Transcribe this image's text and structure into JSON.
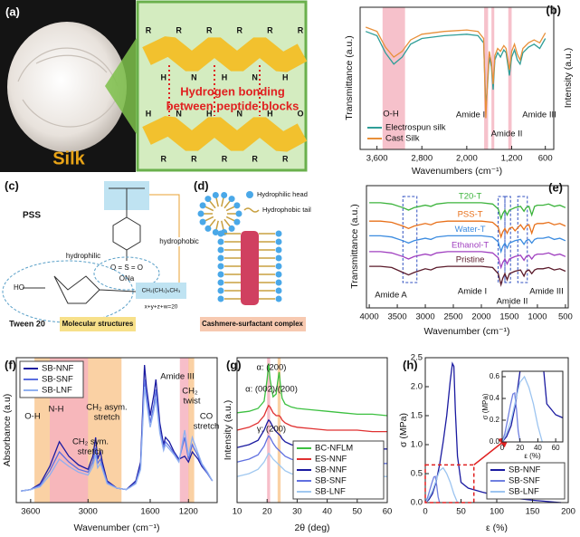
{
  "panels": {
    "a": {
      "label": "(a)",
      "photo_caption": "Silk",
      "bond_text": [
        "Hydrogen bonding",
        "between peptide blocks"
      ],
      "upper_chain_atoms": [
        "R",
        "H",
        "R",
        "N",
        "R",
        "H",
        "R",
        "N",
        "R",
        "H",
        "R"
      ],
      "lower_chain_atoms": [
        "H",
        "R",
        "N",
        "R",
        "H",
        "R",
        "N",
        "R",
        "H",
        "R",
        "O"
      ]
    },
    "c": {
      "label": "(c)",
      "pss": "PSS",
      "sulfonate": "O = S = O",
      "sodium": "ONa",
      "hydrophobic": "hydrophobic",
      "hydrophilic": "hydrophilic",
      "hydroxyl": "HO",
      "tween": "Tween 20",
      "tail": "CH₂(CH₂)₉CH₃",
      "sum": "x+y+z+w=20",
      "caption": "Molecular structures"
    },
    "d": {
      "label": "(d)",
      "head": "Hydrophilic head",
      "tail": "Hydrophobic tail",
      "caption": "Cashmere-surfactant complex"
    }
  },
  "chart_data": [
    {
      "type": "line",
      "panel_label": "(b)",
      "xlabel": "Wavenumbers (cm⁻¹)",
      "ylabel": "Transmittance (a.u.)",
      "y2label": "Intensity (a.u.)",
      "x": [
        3800,
        3600,
        3450,
        3300,
        3150,
        3000,
        2800,
        2400,
        2000,
        1800,
        1700,
        1660,
        1630,
        1600,
        1560,
        1530,
        1500,
        1450,
        1400,
        1340,
        1300,
        1240,
        1200,
        1150,
        1100,
        1050,
        1000,
        900,
        800,
        700,
        600
      ],
      "series": [
        {
          "name": "Electrospun silk",
          "color": "#2f9e98",
          "values": [
            8.3,
            8.0,
            6.8,
            6.0,
            6.5,
            7.4,
            7.8,
            8.0,
            8.1,
            8.0,
            7.5,
            3.0,
            4.5,
            6.5,
            5.8,
            4.2,
            6.3,
            6.8,
            6.5,
            7.0,
            6.8,
            5.2,
            6.5,
            7.0,
            6.3,
            6.0,
            6.8,
            7.2,
            7.4,
            7.1,
            7.8
          ]
        },
        {
          "name": "Cast Silk",
          "color": "#e8903a",
          "values": [
            8.6,
            8.3,
            7.2,
            6.5,
            6.9,
            7.7,
            8.1,
            8.3,
            8.4,
            8.3,
            7.8,
            2.2,
            4.8,
            6.9,
            6.1,
            4.6,
            6.6,
            7.1,
            6.9,
            7.3,
            7.1,
            5.6,
            6.9,
            7.4,
            6.7,
            6.3,
            7.1,
            7.5,
            7.7,
            7.5,
            8.2
          ]
        }
      ],
      "xlim": [
        3900,
        450
      ],
      "ylim": [
        0,
        10
      ],
      "xticks": [
        {
          "value": 3600,
          "label": "3,600"
        },
        {
          "value": 2800,
          "label": "2,800"
        },
        {
          "value": 2000,
          "label": "2,000"
        },
        {
          "value": 1200,
          "label": "1,200"
        },
        600
      ],
      "bands": [
        {
          "range": [
            3500,
            3100
          ],
          "color": "#f4b6c2"
        },
        {
          "range": [
            1690,
            1620
          ],
          "color": "#f4b6c2"
        },
        {
          "range": [
            1560,
            1510
          ],
          "color": "#f4b6c2"
        },
        {
          "range": [
            1260,
            1200
          ],
          "color": "#f4b6c2"
        }
      ],
      "annotations": [
        "O-H",
        "Amide I",
        "Amide II",
        "Amide III"
      ],
      "legend": "bottom-left"
    },
    {
      "type": "line",
      "panel_label": "(e)",
      "xlabel": "Wavenumber (cm⁻¹)",
      "ylabel": "Transmittance (a.u.)",
      "x": [
        4000,
        3800,
        3600,
        3400,
        3300,
        3200,
        3000,
        2900,
        2800,
        2600,
        2400,
        2200,
        2000,
        1800,
        1700,
        1650,
        1620,
        1580,
        1540,
        1500,
        1450,
        1400,
        1300,
        1240,
        1200,
        1150,
        1100,
        1050,
        1000,
        900,
        800,
        700,
        600,
        500
      ],
      "series": [
        {
          "name": "T20-T",
          "color": "#3cb33c",
          "values": [
            8.6,
            8.6,
            8.5,
            8.2,
            8.0,
            8.2,
            8.4,
            8.3,
            8.5,
            8.6,
            8.6,
            8.6,
            8.6,
            8.5,
            8.1,
            7.3,
            7.7,
            8.0,
            7.6,
            8.0,
            8.1,
            8.2,
            8.3,
            7.9,
            8.2,
            8.3,
            7.6,
            8.3,
            8.4,
            8.4,
            8.5,
            8.3,
            8.4,
            8.2
          ]
        },
        {
          "name": "PSS-T",
          "color": "#e8701a",
          "values": [
            7.1,
            7.1,
            7.0,
            6.7,
            6.5,
            6.7,
            6.9,
            6.8,
            7.0,
            7.1,
            7.1,
            7.1,
            7.1,
            7.0,
            6.6,
            5.8,
            6.2,
            6.5,
            6.1,
            6.5,
            6.6,
            6.3,
            6.8,
            6.4,
            6.7,
            6.8,
            6.1,
            6.8,
            6.9,
            6.9,
            7.0,
            6.8,
            6.9,
            6.7
          ]
        },
        {
          "name": "Water-T",
          "color": "#3c8ce0",
          "values": [
            5.9,
            5.9,
            5.8,
            5.5,
            5.3,
            5.5,
            5.7,
            5.6,
            5.8,
            5.9,
            5.9,
            5.9,
            5.9,
            5.8,
            5.4,
            4.6,
            5.0,
            5.3,
            4.9,
            5.3,
            5.4,
            5.5,
            5.6,
            5.2,
            5.5,
            5.6,
            5.3,
            5.6,
            5.7,
            5.7,
            5.8,
            5.6,
            5.7,
            5.5
          ]
        },
        {
          "name": "Ethanol-T",
          "color": "#a040c0",
          "values": [
            4.6,
            4.6,
            4.5,
            4.2,
            4.0,
            4.2,
            4.4,
            4.3,
            4.5,
            4.6,
            4.6,
            4.6,
            4.6,
            4.5,
            4.1,
            3.3,
            3.7,
            4.0,
            3.6,
            4.0,
            4.1,
            4.2,
            4.3,
            3.9,
            4.2,
            4.3,
            4.0,
            4.3,
            4.4,
            4.4,
            4.5,
            4.3,
            4.4,
            4.2
          ]
        },
        {
          "name": "Pristine",
          "color": "#5a1a2a",
          "values": [
            3.4,
            3.4,
            3.3,
            2.9,
            2.7,
            2.9,
            3.2,
            3.1,
            3.3,
            3.4,
            3.4,
            3.4,
            3.4,
            3.3,
            2.8,
            1.9,
            2.4,
            2.8,
            2.3,
            2.8,
            2.9,
            3.0,
            3.1,
            2.6,
            3.0,
            3.1,
            2.8,
            3.1,
            3.2,
            3.2,
            3.3,
            3.1,
            3.2,
            3.0
          ]
        }
      ],
      "xlim": [
        4050,
        450
      ],
      "ylim": [
        0,
        10
      ],
      "xticks": [
        4000,
        3500,
        3000,
        2500,
        2000,
        1500,
        1000,
        500
      ],
      "highlight_ranges": [
        [
          3400,
          3150
        ],
        [
          1700,
          1580
        ],
        [
          1580,
          1480
        ],
        [
          1350,
          1180
        ]
      ],
      "highlight_color": "#3050c0",
      "annotations": [
        "Amide A",
        "Amide I",
        "Amide II",
        "Amide III"
      ],
      "legend": "inline"
    },
    {
      "type": "line",
      "panel_label": "(f)",
      "xlabel": "Wavenumber (cm⁻¹)",
      "ylabel": "Absorbance (a.u)",
      "x": [
        3700,
        3600,
        3500,
        3400,
        3300,
        3200,
        3100,
        3000,
        2950,
        2920,
        2900,
        2870,
        2850,
        2800,
        2700,
        2600,
        1850,
        1800,
        1750,
        1700,
        1660,
        1640,
        1600,
        1560,
        1540,
        1500,
        1460,
        1440,
        1400,
        1350,
        1300,
        1240,
        1200,
        1160,
        1100,
        1060,
        1000,
        950
      ],
      "series": [
        {
          "name": "SB-NNF",
          "color": "#1a1aa0",
          "values": [
            0.8,
            0.9,
            1.3,
            2.5,
            4.2,
            3.2,
            2.6,
            2.3,
            3.2,
            4.5,
            3.0,
            3.5,
            2.8,
            1.5,
            1.0,
            0.9,
            0.9,
            1.2,
            1.5,
            2.8,
            9.5,
            8.0,
            6.0,
            7.5,
            8.5,
            5.5,
            4.0,
            4.5,
            4.2,
            3.5,
            3.0,
            3.2,
            2.8,
            3.5,
            3.0,
            2.5,
            2.0,
            1.5
          ]
        },
        {
          "name": "SB-SNF",
          "color": "#5a6ee0",
          "values": [
            0.8,
            0.9,
            1.2,
            2.2,
            3.5,
            2.8,
            2.3,
            2.1,
            2.8,
            3.8,
            2.7,
            3.0,
            2.5,
            1.4,
            1.0,
            0.9,
            0.9,
            1.1,
            1.4,
            2.5,
            8.5,
            7.5,
            5.5,
            6.8,
            7.8,
            5.0,
            3.8,
            4.2,
            3.9,
            3.4,
            2.9,
            4.5,
            3.0,
            4.0,
            3.2,
            2.6,
            2.0,
            1.5
          ]
        },
        {
          "name": "SB-LNF",
          "color": "#8fb0f0",
          "values": [
            0.8,
            0.9,
            1.1,
            1.9,
            3.0,
            2.5,
            2.1,
            1.9,
            2.5,
            3.3,
            2.4,
            2.7,
            2.3,
            1.3,
            1.0,
            0.9,
            0.9,
            1.1,
            1.3,
            2.3,
            8.0,
            7.0,
            5.2,
            6.4,
            7.2,
            4.8,
            3.6,
            4.0,
            3.7,
            3.3,
            2.8,
            5.0,
            3.2,
            4.5,
            3.4,
            2.7,
            2.1,
            1.5
          ]
        }
      ],
      "xlim": [
        3750,
        900
      ],
      "axis_break": [
        2600,
        1850
      ],
      "ylim": [
        0,
        10
      ],
      "xticks": [
        3600,
        3000,
        1600,
        1200
      ],
      "bands": [
        {
          "range": [
            3560,
            2650
          ],
          "color": "#f9c994"
        },
        {
          "range": [
            3400,
            3000
          ],
          "color": "#f6b3c0"
        },
        {
          "range": [
            1290,
            1190
          ],
          "color": "#f6b3c0"
        },
        {
          "range": [
            1200,
            1140
          ],
          "color": "#f9c994"
        }
      ],
      "annotations": [
        "O-H",
        "N-H",
        "CH₂ asym.",
        "stretch",
        "CH₂ sym.",
        "stretch",
        "Amide III",
        "CH₂",
        "twist",
        "CO",
        "stretch"
      ],
      "legend": "top-left"
    },
    {
      "type": "line",
      "panel_label": "(g)",
      "xlabel": "2θ (deg)",
      "ylabel": "Intensity (a.u.)",
      "x": [
        10,
        14,
        17,
        19,
        20,
        20.5,
        21,
        22,
        23,
        23.5,
        24,
        24.5,
        25,
        26,
        28,
        30,
        35,
        40,
        45,
        50,
        55,
        60
      ],
      "series": [
        {
          "name": "BC-NFLM",
          "color": "#3cc040",
          "values": [
            6.2,
            6.3,
            6.5,
            7.0,
            8.5,
            9.6,
            8.5,
            7.3,
            7.5,
            8.3,
            9.0,
            8.0,
            7.2,
            6.8,
            6.6,
            6.5,
            6.4,
            6.3,
            6.2,
            6.1,
            6.1,
            6.0
          ]
        },
        {
          "name": "ES-NNF",
          "color": "#e03030",
          "values": [
            5.0,
            5.2,
            5.5,
            6.0,
            6.5,
            6.7,
            6.6,
            6.2,
            6.0,
            6.0,
            6.0,
            5.9,
            5.7,
            5.5,
            5.3,
            5.2,
            5.1,
            5.0,
            5.0,
            5.0,
            4.9,
            4.9
          ]
        },
        {
          "name": "SB-NNF",
          "color": "#1a1aa0",
          "values": [
            3.8,
            4.0,
            4.3,
            5.0,
            5.5,
            5.7,
            5.6,
            5.2,
            4.9,
            4.8,
            4.7,
            4.6,
            4.4,
            4.2,
            4.0,
            3.9,
            3.9,
            3.8,
            3.8,
            3.8,
            3.7,
            3.7
          ]
        },
        {
          "name": "SB-SNF",
          "color": "#6070e0",
          "values": [
            2.8,
            3.0,
            3.3,
            3.9,
            4.4,
            4.6,
            4.5,
            4.1,
            3.8,
            3.7,
            3.6,
            3.5,
            3.4,
            3.2,
            3.0,
            2.9,
            2.9,
            2.8,
            2.8,
            2.8,
            2.7,
            2.7
          ]
        },
        {
          "name": "SB-LNF",
          "color": "#a0c8f0",
          "values": [
            1.8,
            2.0,
            2.3,
            2.8,
            3.2,
            3.4,
            3.3,
            3.0,
            2.8,
            2.7,
            2.6,
            2.5,
            2.4,
            2.2,
            2.0,
            1.9,
            1.9,
            1.8,
            1.8,
            1.8,
            1.8,
            1.8
          ]
        }
      ],
      "xlim": [
        10,
        60
      ],
      "ylim": [
        0,
        10
      ],
      "xticks": [
        10,
        20,
        30,
        40,
        50,
        60
      ],
      "bands": [
        {
          "range": [
            20,
            21
          ],
          "color": "#f6b3c0"
        },
        {
          "range": [
            23.5,
            24.5
          ],
          "color": "#f9c994"
        }
      ],
      "annotations": [
        "α: (200)",
        "α: (002)/(200)",
        "γ: (200)"
      ],
      "legend": "bottom-right"
    },
    {
      "type": "line",
      "panel_label": "(h)",
      "xlabel": "ε (%)",
      "ylabel": "σ (MPa)",
      "series": [
        {
          "name": "SB-NNF",
          "color": "#1a1aa0",
          "x": [
            0,
            5,
            10,
            15,
            20,
            25,
            30,
            35,
            38,
            40,
            42,
            45,
            50,
            60,
            80,
            100,
            120,
            150,
            180,
            190
          ],
          "values": [
            0,
            0.05,
            0.15,
            0.35,
            0.65,
            1.05,
            1.5,
            2.1,
            2.4,
            2.35,
            1.6,
            0.8,
            0.35,
            0.25,
            0.18,
            0.12,
            0.08,
            0.04,
            0.01,
            0
          ]
        },
        {
          "name": "SB-SNF",
          "color": "#7080e0",
          "x": [
            0,
            3,
            6,
            9,
            12,
            14,
            16,
            18,
            20
          ],
          "values": [
            0,
            0.08,
            0.2,
            0.33,
            0.44,
            0.45,
            0.3,
            0.1,
            0
          ]
        },
        {
          "name": "SB-LNF",
          "color": "#9cc4f0",
          "x": [
            0,
            5,
            10,
            15,
            20,
            25,
            30,
            35,
            40,
            45
          ],
          "values": [
            0,
            0.08,
            0.2,
            0.38,
            0.55,
            0.6,
            0.5,
            0.35,
            0.15,
            0
          ]
        }
      ],
      "xlim": [
        0,
        200
      ],
      "ylim": [
        0,
        2.5
      ],
      "xticks": [
        0,
        50,
        100,
        150,
        200
      ],
      "yticks": [
        {
          "value": 0,
          "label": "0.0"
        },
        {
          "value": 0.5,
          "label": "0.5"
        },
        {
          "value": 1,
          "label": "1.0"
        },
        {
          "value": 1.5,
          "label": "1.5"
        },
        {
          "value": 2,
          "label": "2.0"
        },
        {
          "value": 2.5,
          "label": "2.5"
        }
      ],
      "legend": "bottom-right",
      "inset": {
        "xlabel": "ε (%)",
        "ylabel": "σ (MPa)",
        "xlim": [
          0,
          68
        ],
        "ylim": [
          0,
          0.65
        ],
        "xticks": [
          0,
          20,
          40,
          60
        ],
        "yticks": [
          {
            "value": 0,
            "label": "0.0"
          },
          {
            "value": 0.2,
            "label": "0.2"
          },
          {
            "value": 0.4,
            "label": "0.4"
          },
          {
            "value": 0.6,
            "label": "0.6"
          }
        ],
        "zoom_color": "#e02020"
      }
    }
  ]
}
